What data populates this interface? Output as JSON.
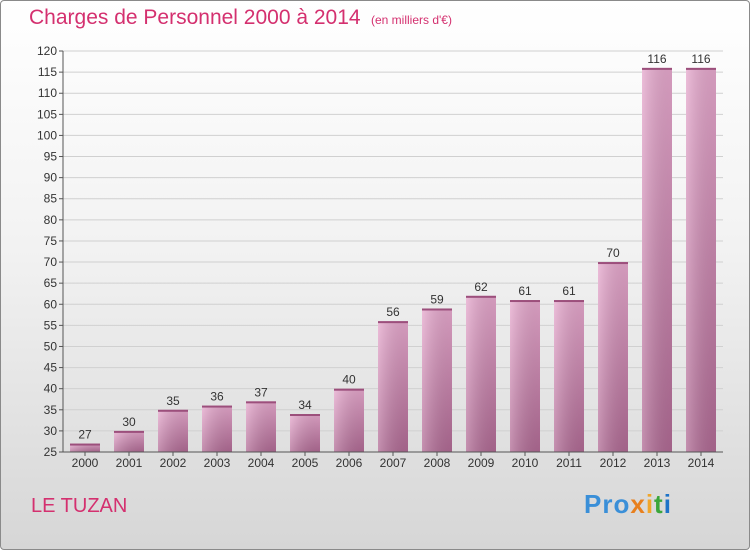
{
  "header": {
    "title": "Charges de Personnel 2000 à 2014",
    "subtitle": "(en milliers d'€)"
  },
  "footer": {
    "location": "LE TUZAN",
    "logo": [
      "Pro",
      "x",
      "i",
      "t",
      "i"
    ]
  },
  "colors": {
    "title": "#d4306f",
    "bar_light": "#e6a8cd",
    "bar_dark": "#b06a94"
  },
  "chart_data": {
    "type": "bar",
    "categories": [
      "2000",
      "2001",
      "2002",
      "2003",
      "2004",
      "2005",
      "2006",
      "2007",
      "2008",
      "2009",
      "2010",
      "2011",
      "2012",
      "2013",
      "2014"
    ],
    "values": [
      27,
      30,
      35,
      36,
      37,
      34,
      40,
      56,
      59,
      62,
      61,
      61,
      70,
      116,
      116
    ],
    "title": "Charges de Personnel 2000 à 2014",
    "ylim": [
      25,
      120
    ],
    "yticks": [
      25,
      30,
      35,
      40,
      45,
      50,
      55,
      60,
      65,
      70,
      75,
      80,
      85,
      90,
      95,
      100,
      105,
      110,
      115,
      120
    ],
    "grid": true
  }
}
